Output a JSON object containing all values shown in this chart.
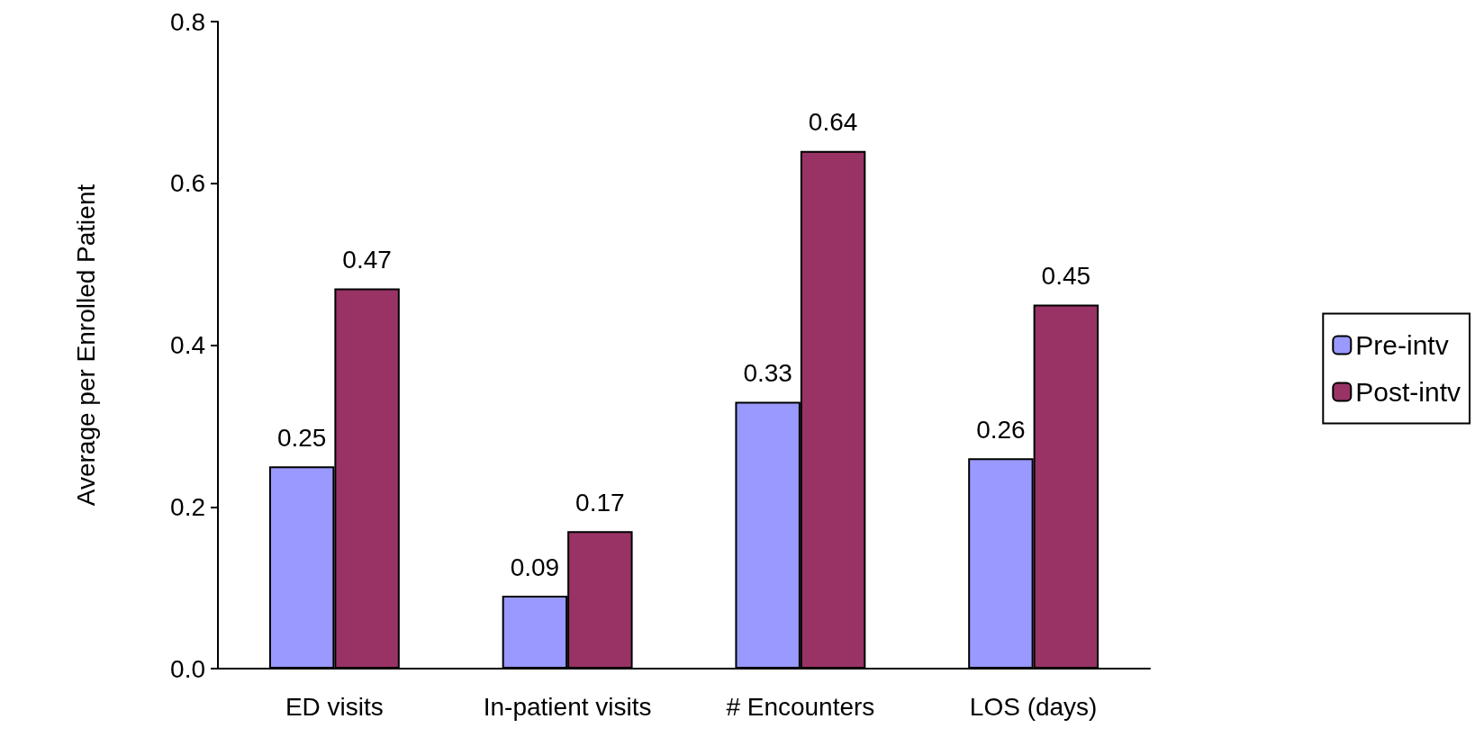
{
  "chart_data": {
    "type": "bar",
    "ylabel": "Average per Enrolled Patient",
    "categories": [
      "ED visits",
      "In-patient visits",
      "# Encounters",
      "LOS (days)"
    ],
    "series": [
      {
        "name": "Pre-intv",
        "color": "#9999ff",
        "values": [
          0.25,
          0.09,
          0.33,
          0.26
        ]
      },
      {
        "name": "Post-intv",
        "color": "#993366",
        "values": [
          0.47,
          0.17,
          0.64,
          0.45
        ]
      }
    ],
    "ylim": [
      0,
      0.8
    ],
    "yticks": [
      {
        "value": 0,
        "label": "0.0"
      },
      0.2,
      0.4,
      0.6,
      0.8
    ],
    "data_labels": true,
    "legend": "right",
    "grid": false
  }
}
